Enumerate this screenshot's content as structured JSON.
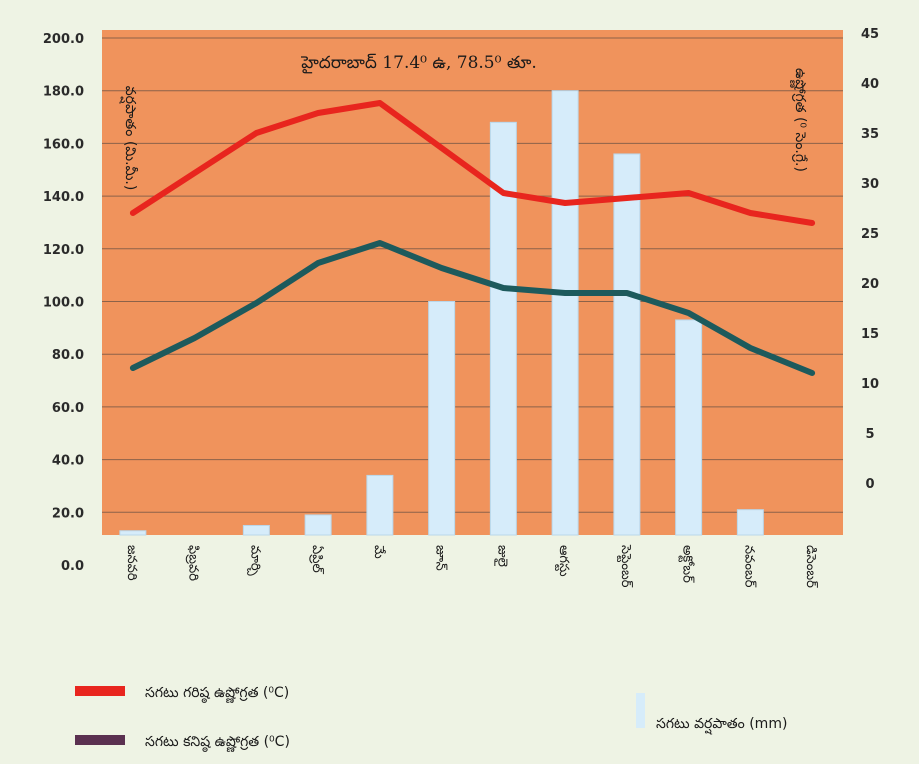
{
  "chart_data": {
    "type": "bar+line",
    "title": "హైదరాబాద్ 17.4⁰ ఉ, 78.5⁰ తూ.",
    "categories": [
      "జనవరి",
      "ఫిబ్రవరి",
      "మార్చి",
      "ఏప్రిల్",
      "మే",
      "జూన్",
      "జులై",
      "ఆగస్టు",
      "సెప్టెంబర్",
      "అక్టోబర్",
      "నవంబర్",
      "డిసెంబర్"
    ],
    "left_axis": {
      "label": "వర్షపాతం (మి.మీ.)",
      "ticks": [
        "200.0",
        "180.0",
        "160.0",
        "140.0",
        "120.0",
        "100.0",
        "80.0",
        "60.0",
        "40.0",
        "20.0",
        "0.0"
      ]
    },
    "right_axis": {
      "label": "ఉష్ణోగ్రత (⁰ సెం.గ్రే.)",
      "ticks": [
        "45",
        "40",
        "35",
        "30",
        "25",
        "20",
        "15",
        "10",
        "5",
        "0"
      ]
    },
    "rainfall": {
      "name": "సగటు వర్షపాతం (mm)",
      "color": "#d6ecfa",
      "values": [
        13,
        8,
        15,
        19,
        34,
        100,
        168,
        180,
        156,
        93,
        21,
        6
      ]
    },
    "max_temp": {
      "name": "సగటు గరిష్ఠ ఉష్ణోగ్రత (⁰C)",
      "color": "#e8251e",
      "values": [
        27,
        31,
        35,
        37,
        38,
        33.5,
        29,
        28,
        28.5,
        29,
        27,
        26
      ]
    },
    "min_temp": {
      "name": "సగటు కనిష్ఠ ఉష్ణోగ్రత (⁰C)",
      "color": "#1d5a5c",
      "legend_color": "#5a3050",
      "values": [
        11.5,
        14.5,
        18,
        22,
        24,
        21.5,
        19.5,
        19,
        19,
        17,
        13.5,
        11
      ]
    },
    "plot_background": "#f0935c",
    "page_background": "#eef3e4",
    "grid": true
  }
}
